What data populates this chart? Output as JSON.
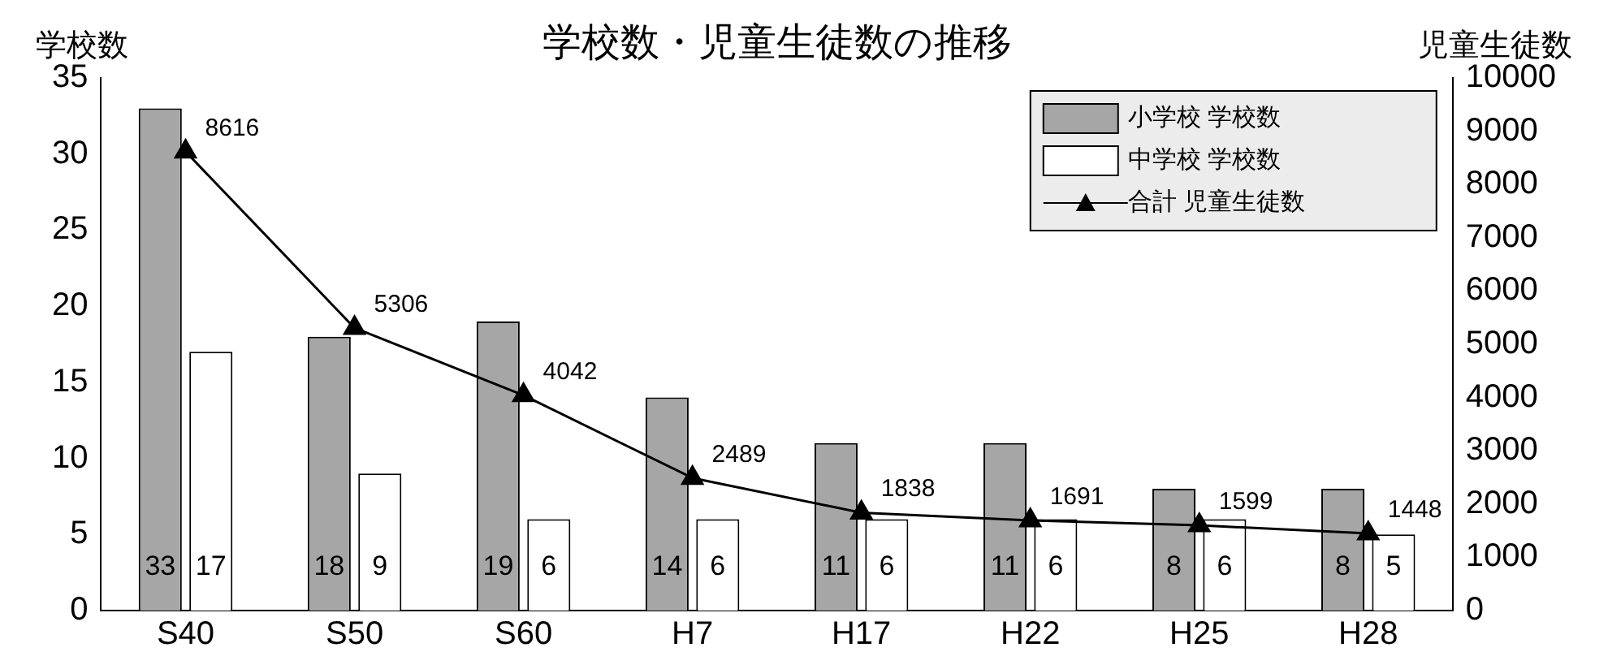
{
  "chart_data": {
    "type": "bar",
    "title": "学校数・児童生徒数の推移",
    "ylabel": "学校数",
    "y2label": "児童生徒数",
    "categories": [
      "S40",
      "S50",
      "S60",
      "H7",
      "H17",
      "H22",
      "H25",
      "H28"
    ],
    "series": [
      {
        "name": "小学校 学校数",
        "color": "#a6a6a6",
        "values": [
          33,
          18,
          19,
          14,
          11,
          11,
          8,
          8
        ]
      },
      {
        "name": "中学校 学校数",
        "color": "#ffffff",
        "values": [
          17,
          9,
          6,
          6,
          6,
          6,
          6,
          5
        ]
      },
      {
        "name": "合計 児童生徒数",
        "type": "line",
        "axis": "y2",
        "color": "#000000",
        "values": [
          8616,
          5306,
          4042,
          2489,
          1838,
          1691,
          1599,
          1448
        ]
      }
    ],
    "ylim": [
      0,
      35
    ],
    "yticks": [
      0,
      5,
      10,
      15,
      20,
      25,
      30,
      35
    ],
    "y2lim": [
      0,
      10000
    ],
    "y2ticks": [
      0,
      1000,
      2000,
      3000,
      4000,
      5000,
      6000,
      7000,
      8000,
      9000,
      10000
    ],
    "grid": false,
    "legend": "top right",
    "marker": "triangle",
    "line_style": "solid",
    "data_labels": true
  }
}
